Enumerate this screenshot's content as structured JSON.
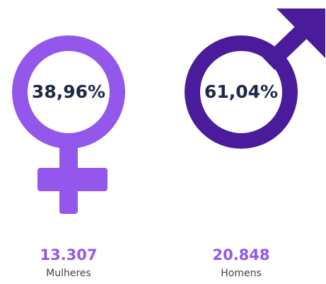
{
  "groups": [
    {
      "percent": "38,96%",
      "count": "13.307",
      "label": "Mulheres",
      "color": "#9457ec"
    },
    {
      "percent": "61,04%",
      "count": "20.848",
      "label": "Homens",
      "color": "#4a1c9c"
    }
  ]
}
